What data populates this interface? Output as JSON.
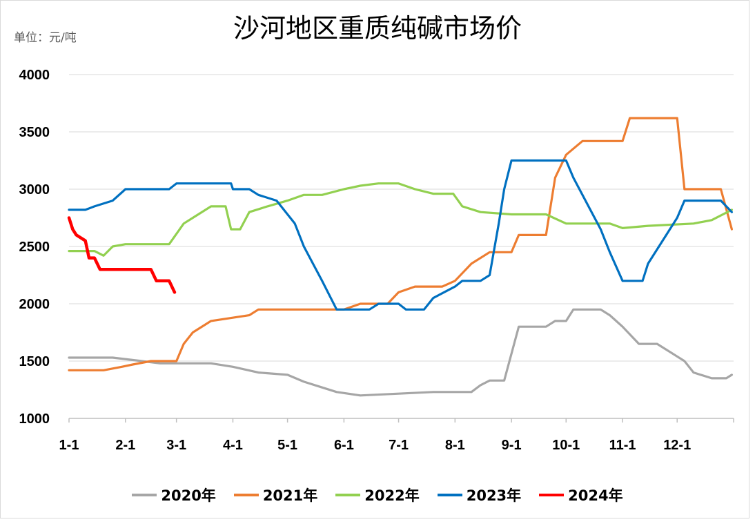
{
  "chart_data": {
    "type": "line",
    "title": "沙河地区重质纯碱市场价",
    "unit_label": "单位：元/吨",
    "xlabel": "",
    "ylabel": "",
    "ylim": [
      1000,
      4000
    ],
    "yticks": [
      "1000",
      "1500",
      "2000",
      "2500",
      "3000",
      "3500",
      "4000"
    ],
    "xticks": [
      "1-1",
      "2-1",
      "3-1",
      "4-1",
      "5-1",
      "6-1",
      "7-1",
      "8-1",
      "9-1",
      "10-1",
      "11-1",
      "12-1"
    ],
    "grid": "horizontal",
    "legend_position": "bottom",
    "series": [
      {
        "name": "2020年",
        "color": "#a6a6a6",
        "points": [
          [
            "1-1",
            1530
          ],
          [
            "1-25",
            1530
          ],
          [
            "2-10",
            1500
          ],
          [
            "2-20",
            1480
          ],
          [
            "3-20",
            1480
          ],
          [
            "4-1",
            1450
          ],
          [
            "4-15",
            1400
          ],
          [
            "5-1",
            1380
          ],
          [
            "5-10",
            1320
          ],
          [
            "5-20",
            1270
          ],
          [
            "5-28",
            1230
          ],
          [
            "6-10",
            1200
          ],
          [
            "7-20",
            1230
          ],
          [
            "8-10",
            1230
          ],
          [
            "8-15",
            1290
          ],
          [
            "8-20",
            1330
          ],
          [
            "8-28",
            1330
          ],
          [
            "9-5",
            1800
          ],
          [
            "9-20",
            1800
          ],
          [
            "9-25",
            1850
          ],
          [
            "10-1",
            1850
          ],
          [
            "10-5",
            1950
          ],
          [
            "10-20",
            1950
          ],
          [
            "10-25",
            1900
          ],
          [
            "11-1",
            1800
          ],
          [
            "11-10",
            1650
          ],
          [
            "11-20",
            1650
          ],
          [
            "11-30",
            1550
          ],
          [
            "12-5",
            1500
          ],
          [
            "12-10",
            1400
          ],
          [
            "12-20",
            1350
          ],
          [
            "12-28",
            1350
          ],
          [
            "12-31",
            1380
          ]
        ]
      },
      {
        "name": "2021年",
        "color": "#ed7d31",
        "points": [
          [
            "1-1",
            1420
          ],
          [
            "1-20",
            1420
          ],
          [
            "1-30",
            1450
          ],
          [
            "2-5",
            1470
          ],
          [
            "2-15",
            1500
          ],
          [
            "3-1",
            1500
          ],
          [
            "3-5",
            1650
          ],
          [
            "3-10",
            1750
          ],
          [
            "3-20",
            1850
          ],
          [
            "4-10",
            1900
          ],
          [
            "4-15",
            1950
          ],
          [
            "6-1",
            1950
          ],
          [
            "6-10",
            2000
          ],
          [
            "6-25",
            2000
          ],
          [
            "7-1",
            2100
          ],
          [
            "7-10",
            2150
          ],
          [
            "7-25",
            2150
          ],
          [
            "8-1",
            2200
          ],
          [
            "8-10",
            2350
          ],
          [
            "8-20",
            2450
          ],
          [
            "9-1",
            2450
          ],
          [
            "9-5",
            2600
          ],
          [
            "9-20",
            2600
          ],
          [
            "9-25",
            3100
          ],
          [
            "10-1",
            3300
          ],
          [
            "10-10",
            3420
          ],
          [
            "11-1",
            3420
          ],
          [
            "11-5",
            3620
          ],
          [
            "12-1",
            3620
          ],
          [
            "12-5",
            3000
          ],
          [
            "12-25",
            3000
          ],
          [
            "12-31",
            2650
          ]
        ]
      },
      {
        "name": "2022年",
        "color": "#92d050",
        "points": [
          [
            "1-1",
            2460
          ],
          [
            "1-15",
            2460
          ],
          [
            "1-20",
            2420
          ],
          [
            "1-25",
            2500
          ],
          [
            "2-1",
            2520
          ],
          [
            "2-25",
            2520
          ],
          [
            "3-5",
            2700
          ],
          [
            "3-10",
            2750
          ],
          [
            "3-20",
            2850
          ],
          [
            "3-28",
            2850
          ],
          [
            "3-31",
            2650
          ],
          [
            "4-5",
            2650
          ],
          [
            "4-10",
            2800
          ],
          [
            "4-20",
            2850
          ],
          [
            "5-1",
            2900
          ],
          [
            "5-10",
            2950
          ],
          [
            "5-20",
            2950
          ],
          [
            "6-1",
            3000
          ],
          [
            "6-10",
            3030
          ],
          [
            "6-20",
            3050
          ],
          [
            "7-1",
            3050
          ],
          [
            "7-10",
            3000
          ],
          [
            "7-20",
            2960
          ],
          [
            "7-31",
            2960
          ],
          [
            "8-5",
            2850
          ],
          [
            "8-15",
            2800
          ],
          [
            "9-1",
            2780
          ],
          [
            "9-20",
            2780
          ],
          [
            "10-1",
            2700
          ],
          [
            "10-25",
            2700
          ],
          [
            "11-1",
            2660
          ],
          [
            "11-15",
            2680
          ],
          [
            "12-10",
            2700
          ],
          [
            "12-20",
            2730
          ],
          [
            "12-31",
            2820
          ]
        ]
      },
      {
        "name": "2023年",
        "color": "#0070c0",
        "points": [
          [
            "1-1",
            2820
          ],
          [
            "1-10",
            2820
          ],
          [
            "1-15",
            2850
          ],
          [
            "1-25",
            2900
          ],
          [
            "2-1",
            3000
          ],
          [
            "2-25",
            3000
          ],
          [
            "3-1",
            3050
          ],
          [
            "3-31",
            3050
          ],
          [
            "4-1",
            3000
          ],
          [
            "4-10",
            3000
          ],
          [
            "4-15",
            2950
          ],
          [
            "4-25",
            2900
          ],
          [
            "5-5",
            2700
          ],
          [
            "5-10",
            2500
          ],
          [
            "5-20",
            2200
          ],
          [
            "5-28",
            1950
          ],
          [
            "6-15",
            1950
          ],
          [
            "6-20",
            2000
          ],
          [
            "7-1",
            2000
          ],
          [
            "7-5",
            1950
          ],
          [
            "7-15",
            1950
          ],
          [
            "7-20",
            2050
          ],
          [
            "8-1",
            2150
          ],
          [
            "8-5",
            2200
          ],
          [
            "8-15",
            2200
          ],
          [
            "8-20",
            2250
          ],
          [
            "8-25",
            2700
          ],
          [
            "8-28",
            3000
          ],
          [
            "9-1",
            3250
          ],
          [
            "10-1",
            3250
          ],
          [
            "10-5",
            3100
          ],
          [
            "10-15",
            2800
          ],
          [
            "10-20",
            2650
          ],
          [
            "10-25",
            2450
          ],
          [
            "11-1",
            2200
          ],
          [
            "11-12",
            2200
          ],
          [
            "11-15",
            2350
          ],
          [
            "11-25",
            2600
          ],
          [
            "12-1",
            2750
          ],
          [
            "12-5",
            2900
          ],
          [
            "12-25",
            2900
          ],
          [
            "12-31",
            2800
          ]
        ]
      },
      {
        "name": "2024年",
        "color": "#ff0000",
        "points": [
          [
            "1-1",
            2750
          ],
          [
            "1-3",
            2650
          ],
          [
            "1-5",
            2600
          ],
          [
            "1-10",
            2550
          ],
          [
            "1-12",
            2400
          ],
          [
            "1-15",
            2400
          ],
          [
            "1-18",
            2300
          ],
          [
            "2-15",
            2300
          ],
          [
            "2-18",
            2200
          ],
          [
            "2-25",
            2200
          ],
          [
            "2-28",
            2100
          ]
        ]
      }
    ]
  }
}
